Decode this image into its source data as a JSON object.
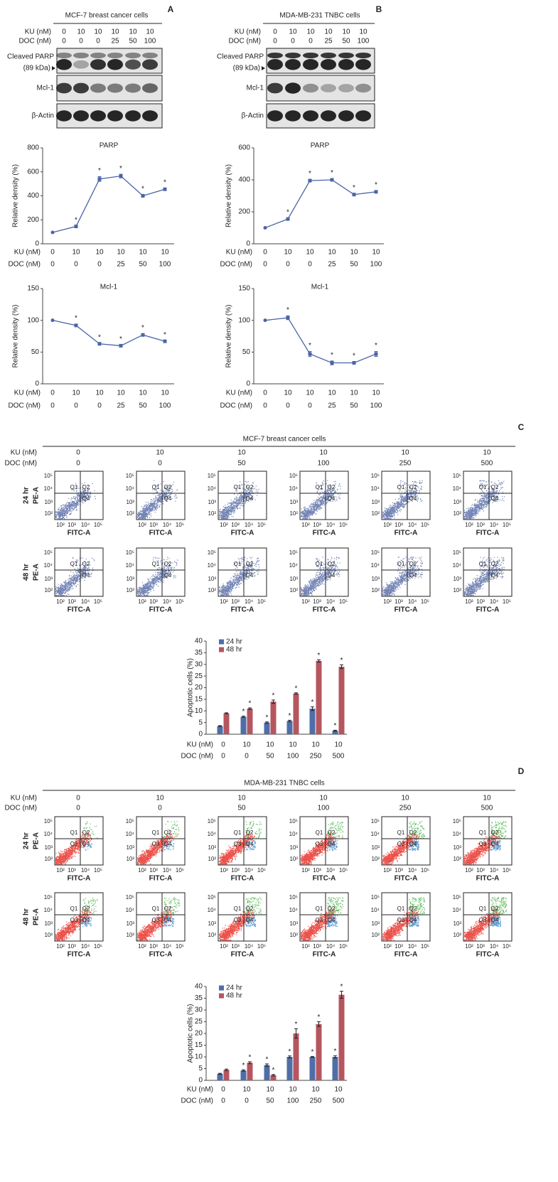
{
  "panel_labels": [
    "A",
    "B",
    "C",
    "D"
  ],
  "blots": [
    {
      "title": "MCF-7 breast cancer cells",
      "row_labels": [
        "KU (nM)",
        "DOC (nM)"
      ],
      "ku": [
        0,
        10,
        10,
        10,
        10,
        10
      ],
      "doc": [
        0,
        0,
        0,
        25,
        50,
        100
      ],
      "bands": [
        [
          "Cleaved PARP",
          "(89 kDa)"
        ],
        [
          "Mcl-1"
        ],
        [
          "β-Actin"
        ]
      ]
    },
    {
      "title": "MDA-MB-231 TNBC cells",
      "row_labels": [
        "KU (nM)",
        "DOC (nM)"
      ],
      "ku": [
        0,
        10,
        10,
        10,
        10,
        10
      ],
      "doc": [
        0,
        0,
        0,
        25,
        50,
        100
      ],
      "bands": [
        [
          "Cleaved PARP",
          "(89 kDa)"
        ],
        [
          "Mcl-1"
        ],
        [
          "β-Actin"
        ]
      ]
    }
  ],
  "chart_data": [
    {
      "type": "line",
      "title": "PARP",
      "y_label": "Relative density (%)",
      "category_rows": [
        "KU (nM)",
        "DOC (nM)"
      ],
      "categories": [
        [
          0,
          0
        ],
        [
          10,
          0
        ],
        [
          10,
          0
        ],
        [
          10,
          25
        ],
        [
          10,
          50
        ],
        [
          10,
          100
        ]
      ],
      "color": "#4a64a8",
      "values": [
        95,
        145,
        540,
        565,
        400,
        455
      ],
      "errors": [
        0,
        5,
        20,
        15,
        10,
        8
      ],
      "markers": [
        null,
        "*",
        "*",
        "*",
        "*",
        "*"
      ],
      "ylim": [
        0,
        800
      ],
      "yticks": [
        0,
        200,
        400,
        600,
        800
      ]
    },
    {
      "type": "line",
      "title": "Mcl-1",
      "y_label": "Relative density (%)",
      "category_rows": [
        "KU (nM)",
        "DOC (nM)"
      ],
      "categories": [
        [
          0,
          0
        ],
        [
          10,
          0
        ],
        [
          10,
          0
        ],
        [
          10,
          25
        ],
        [
          10,
          50
        ],
        [
          10,
          100
        ]
      ],
      "color": "#4a64a8",
      "values": [
        100,
        92,
        63,
        60,
        77,
        67
      ],
      "errors": [
        0,
        2,
        1,
        1,
        2,
        1
      ],
      "markers": [
        null,
        "*",
        "*",
        "*",
        "*",
        "*"
      ],
      "ylim": [
        0,
        150
      ],
      "yticks": [
        0,
        50,
        100,
        150
      ]
    },
    {
      "type": "line",
      "title": "PARP",
      "y_label": "Relative density (%)",
      "category_rows": [
        "KU (nM)",
        "DOC (nM)"
      ],
      "categories": [
        [
          0,
          0
        ],
        [
          10,
          0
        ],
        [
          10,
          0
        ],
        [
          10,
          25
        ],
        [
          10,
          50
        ],
        [
          10,
          100
        ]
      ],
      "color": "#4a64a8",
      "values": [
        100,
        155,
        395,
        400,
        308,
        325
      ],
      "errors": [
        0,
        5,
        8,
        8,
        7,
        6
      ],
      "markers": [
        null,
        "*",
        "*",
        "*",
        "*",
        "*"
      ],
      "ylim": [
        0,
        600
      ],
      "yticks": [
        0,
        200,
        400,
        600
      ]
    },
    {
      "type": "line",
      "title": "Mcl-1",
      "y_label": "Relative density (%)",
      "category_rows": [
        "KU (nM)",
        "DOC (nM)"
      ],
      "categories": [
        [
          0,
          0
        ],
        [
          10,
          0
        ],
        [
          10,
          0
        ],
        [
          10,
          25
        ],
        [
          10,
          50
        ],
        [
          10,
          100
        ]
      ],
      "color": "#4a64a8",
      "values": [
        100,
        104,
        47,
        33,
        33,
        47
      ],
      "errors": [
        0,
        3,
        4,
        3,
        2,
        4
      ],
      "markers": [
        null,
        "*",
        "*",
        "*",
        "*",
        "*"
      ],
      "ylim": [
        0,
        150
      ],
      "yticks": [
        0,
        50,
        100,
        150
      ]
    },
    {
      "type": "bar",
      "y_label": "Apoptotic cells (%)",
      "category_rows": [
        "KU (nM)",
        "DOC (nM)"
      ],
      "categories": [
        [
          0,
          0
        ],
        [
          10,
          0
        ],
        [
          10,
          50
        ],
        [
          10,
          100
        ],
        [
          10,
          250
        ],
        [
          10,
          500
        ]
      ],
      "series": [
        {
          "name": "24 hr",
          "color": "#4f6ea8",
          "values": [
            3.5,
            7.5,
            5,
            5.7,
            11,
            1.5
          ],
          "errors": [
            0.2,
            0.3,
            0.3,
            0.3,
            0.8,
            0.2
          ],
          "markers": [
            null,
            "*",
            "*",
            "*",
            "*",
            "*"
          ]
        },
        {
          "name": "48 hr",
          "color": "#b5565f",
          "values": [
            9,
            11,
            14,
            17.5,
            31.5,
            29
          ],
          "errors": [
            0.2,
            0.3,
            0.7,
            0.3,
            0.5,
            0.8
          ],
          "markers": [
            null,
            "*",
            "*",
            "*",
            "*",
            "*"
          ]
        }
      ],
      "ylim": [
        0,
        40
      ],
      "yticks": [
        0,
        5,
        10,
        15,
        20,
        25,
        30,
        35,
        40
      ]
    },
    {
      "type": "bar",
      "y_label": "Apoptotic cells (%)",
      "category_rows": [
        "KU (nM)",
        "DOC (nM)"
      ],
      "categories": [
        [
          0,
          0
        ],
        [
          10,
          0
        ],
        [
          10,
          50
        ],
        [
          10,
          100
        ],
        [
          10,
          250
        ],
        [
          10,
          500
        ]
      ],
      "series": [
        {
          "name": "24 hr",
          "color": "#4f6ea8",
          "values": [
            2.8,
            4.2,
            6.5,
            10,
            10,
            10
          ],
          "errors": [
            0.2,
            0.3,
            0.5,
            0.4,
            0.2,
            0.5
          ],
          "markers": [
            null,
            "*",
            "*",
            "*",
            "*",
            "*"
          ]
        },
        {
          "name": "48 hr",
          "color": "#b5565f",
          "values": [
            4.5,
            7.5,
            2.2,
            20,
            24,
            36.5
          ],
          "errors": [
            0.3,
            0.4,
            0.3,
            2,
            1,
            1.5
          ],
          "markers": [
            null,
            "*",
            "*",
            "*",
            "*",
            "*"
          ]
        }
      ],
      "ylim": [
        0,
        40
      ],
      "yticks": [
        0,
        5,
        10,
        15,
        20,
        25,
        30,
        35,
        40
      ]
    }
  ],
  "flow": [
    {
      "title": "MCF-7 breast cancer cells",
      "row_labels": [
        "KU (nM)",
        "DOC (nM)"
      ],
      "ku": [
        0,
        10,
        10,
        10,
        10,
        10
      ],
      "doc": [
        0,
        0,
        50,
        100,
        250,
        500
      ],
      "times": [
        "24 hr",
        "48 hr"
      ],
      "y_label": "PE-A",
      "x_label": "FITC-A",
      "ticks": [
        "10²",
        "10³",
        "10⁴",
        "10⁵"
      ],
      "quadrants": [
        "Q1",
        "Q2",
        "Q4"
      ]
    },
    {
      "title": "MDA-MB-231 TNBC cells",
      "row_labels": [
        "KU (nM)",
        "DOC (nM)"
      ],
      "ku": [
        0,
        10,
        10,
        10,
        10,
        10
      ],
      "doc": [
        0,
        0,
        50,
        100,
        250,
        500
      ],
      "times": [
        "24 hr",
        "48 hr"
      ],
      "y_label": "PE-A",
      "x_label": "FITC-A",
      "ticks": [
        "10²",
        "10³",
        "10⁴",
        "10⁵"
      ],
      "quadrants": [
        "Q1",
        "Q2",
        "Q3",
        "Q4"
      ]
    }
  ]
}
